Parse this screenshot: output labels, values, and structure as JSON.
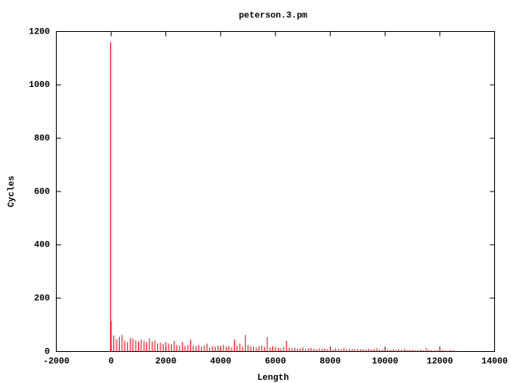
{
  "chart_data": {
    "type": "impulse",
    "title": "peterson.3.pm",
    "x_label": "Length",
    "y_label": "Cycles",
    "color": "#ff0000",
    "xlim": [
      -2000,
      14000
    ],
    "xticks": [
      -2000,
      0,
      2000,
      4000,
      6000,
      8000,
      10000,
      12000,
      14000
    ],
    "ylim": [
      0,
      1200
    ],
    "yticks": [
      0,
      200,
      400,
      600,
      800,
      1000,
      1200
    ],
    "x": [
      -20,
      0,
      100,
      200,
      300,
      400,
      500,
      600,
      700,
      800,
      900,
      1000,
      1100,
      1200,
      1300,
      1400,
      1500,
      1600,
      1700,
      1800,
      1900,
      2000,
      2100,
      2200,
      2300,
      2400,
      2500,
      2600,
      2700,
      2800,
      2900,
      3000,
      3100,
      3200,
      3300,
      3400,
      3500,
      3600,
      3700,
      3800,
      3900,
      4000,
      4100,
      4200,
      4300,
      4400,
      4500,
      4600,
      4700,
      4800,
      4900,
      5000,
      5100,
      5200,
      5300,
      5400,
      5500,
      5600,
      5700,
      5800,
      5900,
      6000,
      6100,
      6200,
      6300,
      6400,
      6500,
      6600,
      6700,
      6800,
      6900,
      7000,
      7100,
      7200,
      7300,
      7400,
      7500,
      7600,
      7700,
      7800,
      7900,
      8000,
      8100,
      8200,
      8300,
      8400,
      8500,
      8600,
      8700,
      8800,
      8900,
      9000,
      9100,
      9200,
      9300,
      9400,
      9500,
      9600,
      9700,
      9800,
      9900,
      10000,
      10100,
      10200,
      10300,
      10400,
      10500,
      10600,
      10700,
      10800,
      10900,
      11000,
      11100,
      11200,
      11300,
      11400,
      11500,
      11600,
      11700,
      11800,
      11900,
      12000,
      12100,
      12200,
      12300,
      12400,
      12500
    ],
    "values": [
      1160,
      115,
      60,
      45,
      55,
      62,
      40,
      35,
      50,
      48,
      42,
      38,
      45,
      40,
      35,
      50,
      38,
      42,
      30,
      33,
      28,
      35,
      30,
      28,
      40,
      25,
      22,
      35,
      20,
      25,
      45,
      22,
      20,
      25,
      18,
      22,
      30,
      15,
      20,
      18,
      22,
      20,
      25,
      18,
      20,
      15,
      45,
      22,
      30,
      18,
      62,
      25,
      20,
      18,
      15,
      20,
      22,
      18,
      55,
      15,
      20,
      18,
      15,
      12,
      18,
      40,
      15,
      12,
      14,
      10,
      12,
      15,
      10,
      12,
      14,
      10,
      8,
      12,
      10,
      11,
      9,
      10,
      8,
      12,
      10,
      9,
      14,
      8,
      10,
      9,
      8,
      10,
      8,
      9,
      7,
      10,
      8,
      9,
      12,
      8,
      7,
      9,
      8,
      7,
      9,
      6,
      8,
      7,
      10,
      6,
      7,
      6,
      5,
      6,
      7,
      5,
      12,
      6,
      5,
      4,
      6,
      10,
      5,
      4,
      3,
      5,
      4
    ]
  }
}
